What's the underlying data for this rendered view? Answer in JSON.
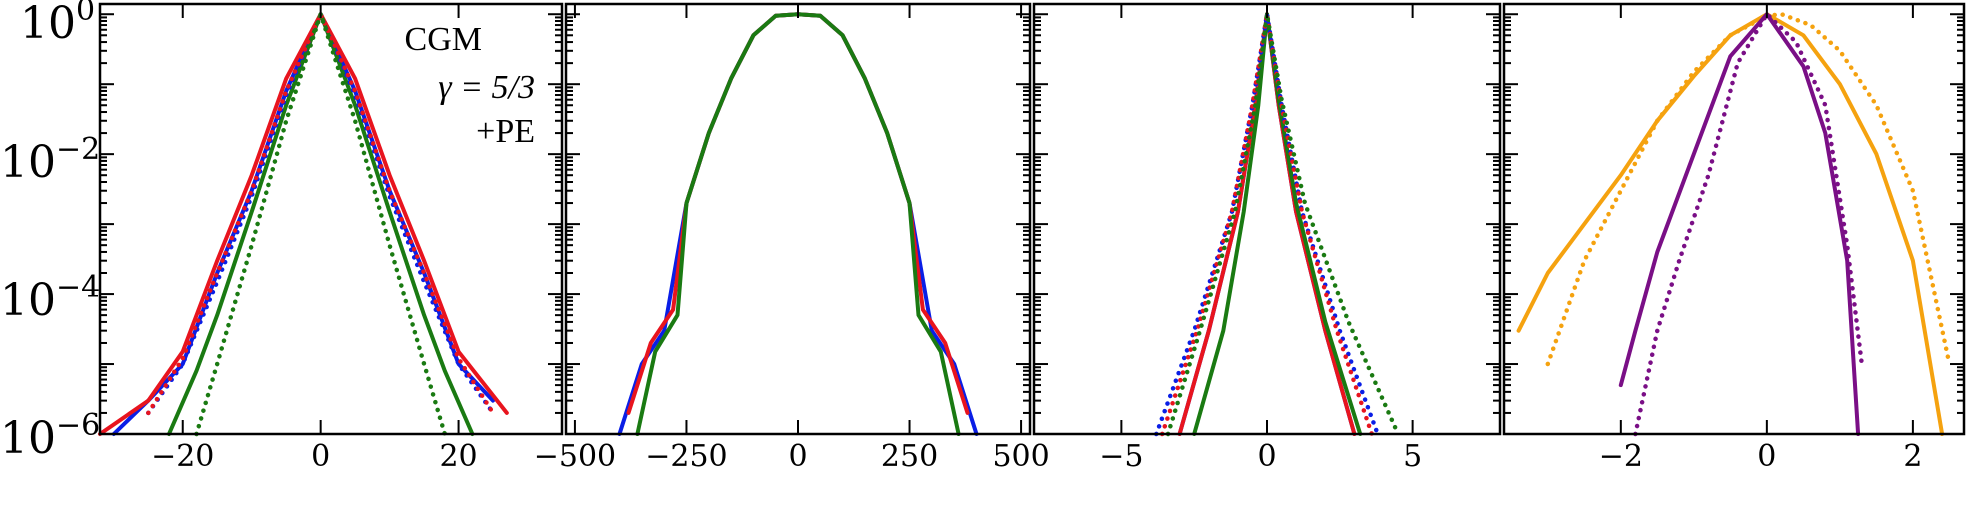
{
  "colors": {
    "blue": "#0a1ee6",
    "red": "#e8141e",
    "green": "#1a7a12",
    "orange": "#f5a20f",
    "purple": "#7a0f86"
  },
  "y_tick_labels": [
    {
      "base": "10",
      "exp": "0"
    },
    {
      "base": "10",
      "exp": "−2"
    },
    {
      "base": "10",
      "exp": "−4"
    },
    {
      "base": "10",
      "exp": "−6"
    }
  ],
  "chart_data": [
    {
      "type": "line",
      "yscale": "log",
      "ylim": [
        1e-06,
        1.4
      ],
      "xlim": [
        -32,
        35
      ],
      "xticks": [
        -20,
        0,
        20
      ],
      "xtick_labels": [
        "−20",
        "0",
        "20"
      ],
      "annotation": [
        "CGM",
        "γ = 5/3",
        "+PE"
      ],
      "series": [
        {
          "color": "blue",
          "style": "solid",
          "x": [
            -30,
            -25,
            -20,
            -15,
            -10,
            -5,
            0,
            5,
            10,
            15,
            20,
            25
          ],
          "y": [
            1e-06,
            3e-06,
            1e-05,
            0.0002,
            0.003,
            0.08,
            1.0,
            0.08,
            0.003,
            0.0002,
            1e-05,
            3e-06
          ]
        },
        {
          "color": "red",
          "style": "solid",
          "x": [
            -32,
            -25,
            -20,
            -15,
            -10,
            -5,
            0,
            5,
            10,
            15,
            20,
            27
          ],
          "y": [
            1e-06,
            3e-06,
            1.5e-05,
            0.0003,
            0.005,
            0.12,
            1.0,
            0.12,
            0.005,
            0.0003,
            1.5e-05,
            2e-06
          ]
        },
        {
          "color": "green",
          "style": "solid",
          "x": [
            -22,
            -18,
            -15,
            -10,
            -5,
            0,
            5,
            10,
            15,
            18,
            22
          ],
          "y": [
            1e-06,
            8e-06,
            5e-05,
            0.0015,
            0.05,
            1.0,
            0.05,
            0.0015,
            5e-05,
            8e-06,
            1e-06
          ]
        },
        {
          "color": "blue",
          "style": "dotted",
          "x": [
            -25,
            -20,
            -15,
            -10,
            -5,
            0,
            5,
            10,
            15,
            20,
            25
          ],
          "y": [
            2e-06,
            1e-05,
            0.00015,
            0.0025,
            0.07,
            1.0,
            0.07,
            0.0025,
            0.00015,
            1e-05,
            2e-06
          ]
        },
        {
          "color": "red",
          "style": "dotted",
          "x": [
            -25,
            -20,
            -15,
            -10,
            -5,
            0,
            5,
            10,
            15,
            20,
            25
          ],
          "y": [
            2e-06,
            1.2e-05,
            0.0002,
            0.003,
            0.08,
            1.0,
            0.08,
            0.003,
            0.0002,
            1.2e-05,
            2e-06
          ]
        },
        {
          "color": "green",
          "style": "dotted",
          "x": [
            -18,
            -15,
            -10,
            -5,
            0,
            5,
            10,
            15,
            18
          ],
          "y": [
            1e-06,
            1e-05,
            0.0005,
            0.03,
            1.0,
            0.03,
            0.0005,
            1e-05,
            1e-06
          ]
        }
      ]
    },
    {
      "type": "line",
      "yscale": "log",
      "ylim": [
        1e-06,
        1.4
      ],
      "xlim": [
        -520,
        520
      ],
      "xticks": [
        -500,
        -250,
        0,
        250,
        500
      ],
      "xtick_labels": [
        "−500",
        "−250",
        "0",
        "250",
        "500"
      ],
      "series": [
        {
          "color": "blue",
          "style": "solid",
          "x": [
            -400,
            -350,
            -300,
            -250,
            -200,
            -150,
            -100,
            -50,
            0,
            50,
            100,
            150,
            200,
            250,
            300,
            350,
            400
          ],
          "y": [
            1e-06,
            1e-05,
            3e-05,
            0.002,
            0.02,
            0.12,
            0.5,
            0.95,
            1.0,
            0.95,
            0.5,
            0.12,
            0.02,
            0.002,
            3e-05,
            1e-05,
            1e-06
          ]
        },
        {
          "color": "red",
          "style": "solid",
          "x": [
            -380,
            -330,
            -280,
            -250,
            -200,
            -150,
            -100,
            -50,
            0,
            50,
            100,
            150,
            200,
            250,
            280,
            330,
            380
          ],
          "y": [
            2e-06,
            2e-05,
            6e-05,
            0.002,
            0.02,
            0.12,
            0.5,
            0.95,
            1.0,
            0.95,
            0.5,
            0.12,
            0.02,
            0.002,
            6e-05,
            2e-05,
            2e-06
          ]
        },
        {
          "color": "green",
          "style": "solid",
          "x": [
            -360,
            -320,
            -270,
            -250,
            -200,
            -150,
            -100,
            -50,
            0,
            50,
            100,
            150,
            200,
            250,
            270,
            320,
            360
          ],
          "y": [
            1e-06,
            1.5e-05,
            5e-05,
            0.002,
            0.02,
            0.12,
            0.5,
            0.95,
            1.0,
            0.95,
            0.5,
            0.12,
            0.02,
            0.002,
            5e-05,
            1.5e-05,
            1e-06
          ]
        }
      ]
    },
    {
      "type": "line",
      "yscale": "log",
      "ylim": [
        1e-06,
        1.4
      ],
      "xlim": [
        -8,
        8
      ],
      "xticks": [
        -5,
        0,
        5
      ],
      "xtick_labels": [
        "−5",
        "0",
        "5"
      ],
      "series": [
        {
          "color": "blue",
          "style": "solid",
          "x": [
            -3.0,
            -2.0,
            -1.0,
            -0.4,
            0,
            0.4,
            1.0,
            2.0,
            3.0
          ],
          "y": [
            1e-06,
            3e-05,
            0.0015,
            0.05,
            1.0,
            0.05,
            0.0015,
            3e-05,
            1e-06
          ]
        },
        {
          "color": "red",
          "style": "solid",
          "x": [
            -3.0,
            -2.0,
            -1.0,
            -0.4,
            0,
            0.4,
            1.0,
            2.0,
            3.0
          ],
          "y": [
            1e-06,
            3e-05,
            0.0015,
            0.05,
            1.0,
            0.05,
            0.0015,
            3e-05,
            1e-06
          ]
        },
        {
          "color": "green",
          "style": "solid",
          "x": [
            -2.5,
            -1.5,
            -0.8,
            -0.3,
            0,
            0.4,
            1.0,
            2.0,
            3.2
          ],
          "y": [
            1e-06,
            3e-05,
            0.0015,
            0.05,
            1.0,
            0.06,
            0.002,
            4e-05,
            1e-06
          ]
        },
        {
          "color": "blue",
          "style": "dotted",
          "x": [
            -3.8,
            -2.5,
            -1.2,
            -0.5,
            0,
            0.5,
            1.2,
            2.5,
            3.8
          ],
          "y": [
            1e-06,
            3e-05,
            0.0015,
            0.05,
            1.0,
            0.05,
            0.0015,
            3e-05,
            1e-06
          ]
        },
        {
          "color": "red",
          "style": "dotted",
          "x": [
            -3.6,
            -2.4,
            -1.2,
            -0.5,
            0,
            0.5,
            1.2,
            2.4,
            3.6
          ],
          "y": [
            1e-06,
            3e-05,
            0.0015,
            0.05,
            1.0,
            0.05,
            0.0015,
            3e-05,
            1e-06
          ]
        },
        {
          "color": "green",
          "style": "dotted",
          "x": [
            -3.4,
            -2.3,
            -1.1,
            -0.4,
            0,
            0.5,
            1.3,
            2.8,
            4.5
          ],
          "y": [
            1e-06,
            3e-05,
            0.0015,
            0.05,
            1.0,
            0.06,
            0.002,
            4e-05,
            1e-06
          ]
        }
      ]
    },
    {
      "type": "line",
      "yscale": "log",
      "ylim": [
        1e-06,
        1.4
      ],
      "xlim": [
        -3.6,
        2.7
      ],
      "xticks": [
        -2,
        0,
        2
      ],
      "xtick_labels": [
        "−2",
        "0",
        "2"
      ],
      "series": [
        {
          "color": "orange",
          "style": "solid",
          "x": [
            -3.4,
            -3.0,
            -2.5,
            -2.0,
            -1.5,
            -1.0,
            -0.5,
            0,
            0.5,
            1.0,
            1.5,
            2.0,
            2.4
          ],
          "y": [
            3e-05,
            0.0002,
            0.001,
            0.005,
            0.03,
            0.13,
            0.5,
            1.0,
            0.5,
            0.1,
            0.01,
            0.0003,
            1e-06
          ]
        },
        {
          "color": "orange",
          "style": "dotted",
          "x": [
            -3.0,
            -2.5,
            -2.0,
            -1.5,
            -1.0,
            -0.5,
            0,
            0.2,
            0.6,
            1.0,
            1.5,
            2.0,
            2.5
          ],
          "y": [
            1e-05,
            0.0003,
            0.003,
            0.03,
            0.15,
            0.5,
            0.95,
            1.0,
            0.7,
            0.3,
            0.05,
            0.003,
            1e-05
          ]
        },
        {
          "color": "purple",
          "style": "solid",
          "x": [
            -2.0,
            -1.8,
            -1.5,
            -1.0,
            -0.5,
            0,
            0.5,
            0.8,
            1.1,
            1.25
          ],
          "y": [
            5e-06,
            3e-05,
            0.0004,
            0.01,
            0.25,
            1.0,
            0.18,
            0.02,
            0.0003,
            1e-06
          ]
        },
        {
          "color": "purple",
          "style": "dotted",
          "x": [
            -1.8,
            -1.5,
            -1.2,
            -0.8,
            -0.4,
            0,
            0.4,
            0.8,
            1.1,
            1.3
          ],
          "y": [
            1e-06,
            3e-05,
            0.0003,
            0.005,
            0.2,
            1.0,
            0.4,
            0.05,
            0.0005,
            1e-05
          ]
        }
      ]
    }
  ]
}
